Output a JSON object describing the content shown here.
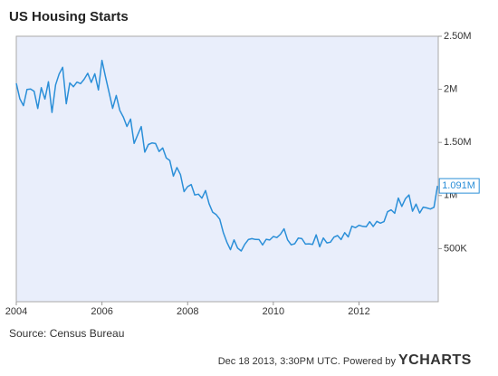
{
  "chart_data": {
    "type": "line",
    "title": "US Housing Starts",
    "source": "Source: Census Bureau",
    "footer": "Dec 18 2013, 3:30PM UTC. Powered by",
    "brand": "YCHARTS",
    "xlim": [
      2004,
      2013.85
    ],
    "xticks": [
      2004,
      2006,
      2008,
      2010,
      2012
    ],
    "ylim": [
      0,
      2500000
    ],
    "yticks": [
      {
        "value": 500000,
        "label": "500K"
      },
      {
        "value": 1000000,
        "label": "1M"
      },
      {
        "value": 1500000,
        "label": "1.50M"
      },
      {
        "value": 2000000,
        "label": "2M"
      },
      {
        "value": 2500000,
        "label": "2.50M"
      }
    ],
    "grid": false,
    "x": [
      2004,
      2004.083,
      2004.167,
      2004.25,
      2004.333,
      2004.417,
      2004.5,
      2004.583,
      2004.667,
      2004.75,
      2004.833,
      2004.917,
      2005,
      2005.083,
      2005.167,
      2005.25,
      2005.333,
      2005.417,
      2005.5,
      2005.583,
      2005.667,
      2005.75,
      2005.833,
      2005.917,
      2006,
      2006.083,
      2006.167,
      2006.25,
      2006.333,
      2006.417,
      2006.5,
      2006.583,
      2006.667,
      2006.75,
      2006.833,
      2006.917,
      2007,
      2007.083,
      2007.167,
      2007.25,
      2007.333,
      2007.417,
      2007.5,
      2007.583,
      2007.667,
      2007.75,
      2007.833,
      2007.917,
      2008,
      2008.083,
      2008.167,
      2008.25,
      2008.333,
      2008.417,
      2008.5,
      2008.583,
      2008.667,
      2008.75,
      2008.833,
      2008.917,
      2009,
      2009.083,
      2009.167,
      2009.25,
      2009.333,
      2009.417,
      2009.5,
      2009.583,
      2009.667,
      2009.75,
      2009.833,
      2009.917,
      2010,
      2010.083,
      2010.167,
      2010.25,
      2010.333,
      2010.417,
      2010.5,
      2010.583,
      2010.667,
      2010.75,
      2010.833,
      2010.917,
      2011,
      2011.083,
      2011.167,
      2011.25,
      2011.333,
      2011.417,
      2011.5,
      2011.583,
      2011.667,
      2011.75,
      2011.833,
      2011.917,
      2012,
      2012.083,
      2012.167,
      2012.25,
      2012.333,
      2012.417,
      2012.5,
      2012.583,
      2012.667,
      2012.75,
      2012.833,
      2012.917,
      2013,
      2013.083,
      2013.167,
      2013.25,
      2013.333,
      2013.417,
      2013.5,
      2013.583,
      2013.667,
      2013.75,
      2013.833
    ],
    "series": [
      {
        "name": "US Housing Starts",
        "color": "#2b8fd8",
        "values": [
          2057000,
          1911000,
          1846000,
          1998000,
          2003000,
          1981000,
          1820000,
          2015000,
          1909000,
          2072000,
          1782000,
          2042000,
          2144000,
          2207000,
          1864000,
          2061000,
          2025000,
          2068000,
          2054000,
          2095000,
          2151000,
          2065000,
          2147000,
          1994000,
          2273000,
          2119000,
          1969000,
          1821000,
          1942000,
          1802000,
          1737000,
          1650000,
          1720000,
          1491000,
          1570000,
          1649000,
          1409000,
          1480000,
          1495000,
          1490000,
          1415000,
          1448000,
          1354000,
          1330000,
          1183000,
          1264000,
          1197000,
          1037000,
          1084000,
          1103000,
          1005000,
          1013000,
          975000,
          1047000,
          923000,
          844000,
          820000,
          777000,
          652000,
          560000,
          490000,
          582000,
          505000,
          478000,
          540000,
          585000,
          594000,
          586000,
          585000,
          534000,
          588000,
          581000,
          614000,
          604000,
          636000,
          687000,
          583000,
          536000,
          546000,
          599000,
          594000,
          543000,
          545000,
          539000,
          630000,
          517000,
          600000,
          554000,
          561000,
          608000,
          623000,
          585000,
          650000,
          610000,
          711000,
          697000,
          720000,
          710000,
          706000,
          753000,
          708000,
          757000,
          740000,
          754000,
          847000,
          865000,
          833000,
          976000,
          898000,
          969000,
          1005000,
          852000,
          919000,
          835000,
          891000,
          883000,
          873000,
          889000,
          1091000
        ],
        "value_labels": [
          null,
          null,
          null,
          null,
          null,
          null,
          null,
          null,
          null,
          null,
          null,
          null,
          null,
          null,
          null,
          null,
          null,
          null,
          null,
          null,
          null,
          null,
          null,
          null,
          null,
          null,
          null,
          null,
          null,
          null,
          null,
          null,
          null,
          null,
          null,
          null,
          null,
          null,
          null,
          null,
          null,
          null,
          null,
          null,
          null,
          null,
          null,
          null,
          null,
          null,
          null,
          null,
          null,
          null,
          null,
          null,
          null,
          null,
          null,
          null,
          null,
          null,
          null,
          null,
          null,
          null,
          null,
          null,
          null,
          null,
          null,
          null,
          null,
          null,
          null,
          null,
          null,
          null,
          null,
          null,
          null,
          null,
          null,
          null,
          null,
          null,
          null,
          null,
          null,
          null,
          null,
          null,
          null,
          null,
          null,
          null,
          null,
          null,
          null,
          null,
          null,
          null,
          null,
          null,
          null,
          null,
          null,
          null,
          null,
          null,
          null,
          null,
          null,
          null,
          null,
          null,
          null,
          null,
          "1.091M"
        ]
      }
    ]
  }
}
